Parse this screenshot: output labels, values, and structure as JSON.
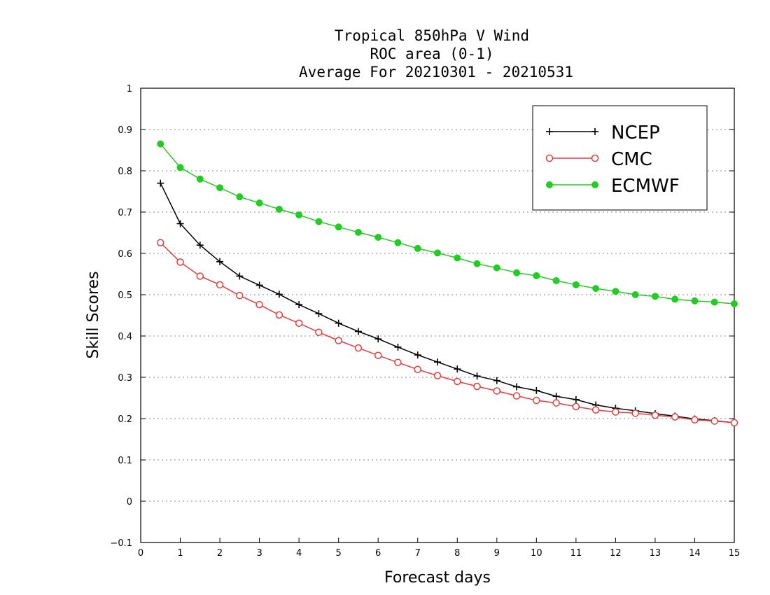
{
  "chart_data": {
    "type": "line",
    "title_lines": [
      "Tropical 850hPa V Wind",
      "ROC area (0-1)",
      "Average For 20210301 - 20210531"
    ],
    "xlabel": "Forecast days",
    "ylabel": "Skill Scores",
    "xlim": [
      0,
      15
    ],
    "ylim": [
      -0.1,
      1
    ],
    "xticks": [
      "0",
      "1",
      "2",
      "3",
      "4",
      "5",
      "6",
      "7",
      "8",
      "9",
      "10",
      "11",
      "12",
      "13",
      "14",
      "15"
    ],
    "yticks": [
      "−0.1",
      "0",
      "0.1",
      "0.2",
      "0.3",
      "0.4",
      "0.5",
      "0.6",
      "0.7",
      "0.8",
      "0.9",
      "1"
    ],
    "grid": true,
    "legend_position": "top-right",
    "x": [
      0.5,
      1,
      1.5,
      2,
      2.5,
      3,
      3.5,
      4,
      4.5,
      5,
      5.5,
      6,
      6.5,
      7,
      7.5,
      8,
      8.5,
      9,
      9.5,
      10,
      10.5,
      11,
      11.5,
      12,
      12.5,
      13,
      13.5,
      14,
      14.5,
      15
    ],
    "series": [
      {
        "name": "NCEP",
        "color": "#000000",
        "marker": "plus",
        "values": [
          0.77,
          0.672,
          0.62,
          0.58,
          0.545,
          0.523,
          0.501,
          0.476,
          0.454,
          0.431,
          0.411,
          0.393,
          0.373,
          0.354,
          0.337,
          0.32,
          0.303,
          0.292,
          0.277,
          0.268,
          0.254,
          0.246,
          0.233,
          0.225,
          0.219,
          0.212,
          0.206,
          0.199,
          0.195,
          0.19
        ]
      },
      {
        "name": "CMC",
        "color": "#e83c3c",
        "marker": "open-circle",
        "values": [
          0.626,
          0.579,
          0.545,
          0.524,
          0.498,
          0.476,
          0.451,
          0.431,
          0.409,
          0.389,
          0.371,
          0.353,
          0.336,
          0.319,
          0.304,
          0.29,
          0.278,
          0.267,
          0.255,
          0.244,
          0.238,
          0.229,
          0.221,
          0.216,
          0.213,
          0.208,
          0.204,
          0.197,
          0.194,
          0.19
        ]
      },
      {
        "name": "ECMWF",
        "color": "#22cc22",
        "marker": "filled-circle",
        "values": [
          0.865,
          0.808,
          0.78,
          0.759,
          0.737,
          0.722,
          0.707,
          0.693,
          0.677,
          0.664,
          0.651,
          0.639,
          0.626,
          0.612,
          0.601,
          0.589,
          0.575,
          0.565,
          0.553,
          0.546,
          0.534,
          0.524,
          0.515,
          0.508,
          0.5,
          0.496,
          0.489,
          0.485,
          0.482,
          0.478
        ]
      }
    ]
  }
}
